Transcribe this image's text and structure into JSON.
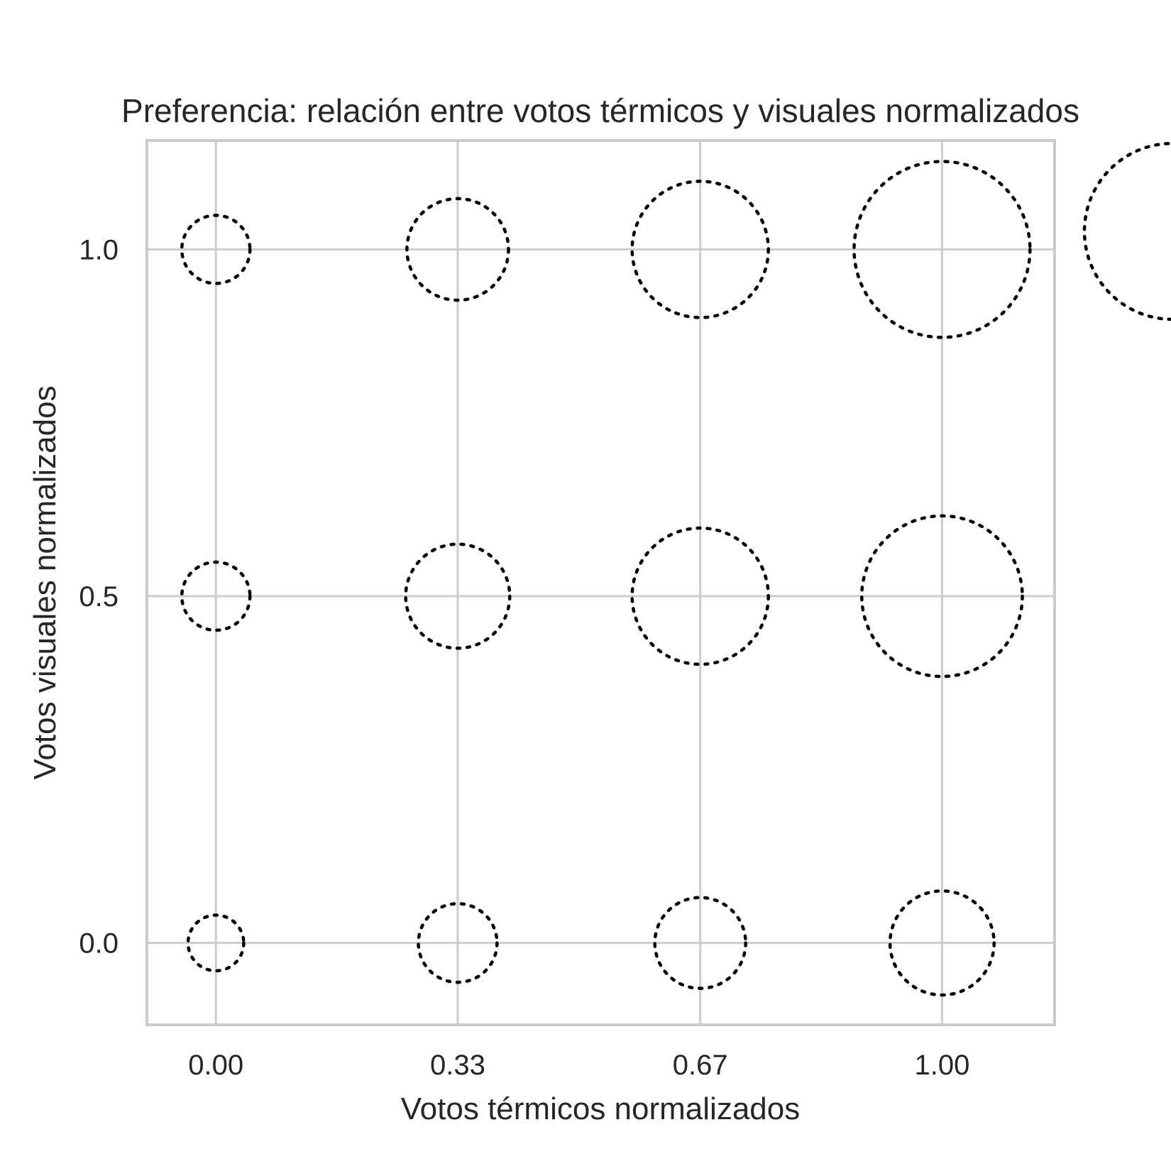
{
  "chart_data": {
    "type": "scatter",
    "title": "Preferencia: relación entre votos térmicos y visuales normalizados",
    "xlabel": "Votos térmicos normalizados",
    "ylabel": "Votos visuales normalizados",
    "xlim": [
      -0.095,
      1.155
    ],
    "ylim": [
      -0.118,
      1.157
    ],
    "xticks": [
      0,
      0.333,
      0.667,
      1
    ],
    "xtick_labels": [
      "0.00",
      "0.33",
      "0.67",
      "1.00"
    ],
    "yticks": [
      0,
      0.5,
      1
    ],
    "ytick_labels": [
      "0.0",
      "0.5",
      "1.0"
    ],
    "grid": true,
    "marker": "hollow circle, dotted black outline",
    "size_encoding": "bubble area proportional to number of responses (relative size)",
    "points": [
      {
        "x": 0.0,
        "y": 0.0,
        "size": 6
      },
      {
        "x": 0.333,
        "y": 0.0,
        "size": 12
      },
      {
        "x": 0.667,
        "y": 0.0,
        "size": 16
      },
      {
        "x": 1.0,
        "y": 0.0,
        "size": 21
      },
      {
        "x": 0.0,
        "y": 0.5,
        "size": 9
      },
      {
        "x": 0.333,
        "y": 0.5,
        "size": 21
      },
      {
        "x": 0.667,
        "y": 0.5,
        "size": 36
      },
      {
        "x": 1.0,
        "y": 0.5,
        "size": 50
      },
      {
        "x": 0.0,
        "y": 1.0,
        "size": 9
      },
      {
        "x": 0.333,
        "y": 1.0,
        "size": 20
      },
      {
        "x": 0.667,
        "y": 1.0,
        "size": 36
      },
      {
        "x": 1.0,
        "y": 1.0,
        "size": 60
      }
    ],
    "legend": {
      "placement": "outside right (clipped)",
      "title": "",
      "entries": [
        {
          "label": "",
          "size": 60
        }
      ]
    }
  }
}
